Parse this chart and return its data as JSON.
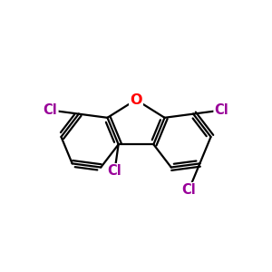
{
  "bg_color": "#ffffff",
  "bond_color": "#000000",
  "oxygen_color": "#ff0000",
  "cl_color": "#990099",
  "cl_label": "Cl",
  "o_label": "O",
  "line_width": 1.6,
  "font_size": 10.5,
  "figsize": [
    3.0,
    3.0
  ],
  "dpi": 100
}
